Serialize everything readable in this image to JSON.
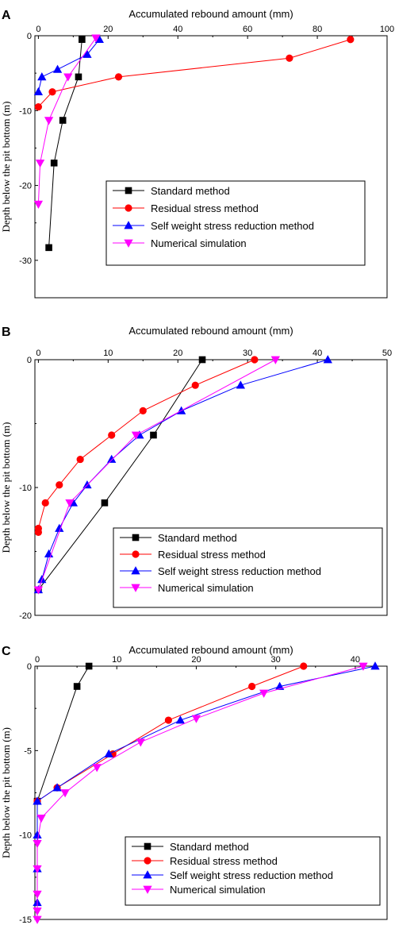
{
  "colors": {
    "standard": "#000000",
    "residual": "#ff0000",
    "selfweight": "#0000ff",
    "numerical": "#ff00ff",
    "axis": "#000000"
  },
  "chart_data": [
    {
      "type": "line",
      "panel": "A",
      "title": "",
      "xlabel": "Accumulated rebound amount (mm)",
      "ylabel": "Depth below the pit bottom (m)",
      "xlim": [
        -1,
        100
      ],
      "ylim": [
        -35,
        0
      ],
      "x_axis_position": "top",
      "x_ticks": [
        0,
        20,
        40,
        60,
        80,
        100
      ],
      "y_ticks": [
        0,
        -10,
        -20,
        -30
      ],
      "y_tick_labels": [
        "0",
        "-10",
        "-20",
        "-30"
      ],
      "grid": false,
      "legend_position": "lower-right",
      "series": [
        {
          "name": "Standard method",
          "key": "standard",
          "marker": "square",
          "x": [
            12.5,
            11.5,
            7,
            4.5,
            3
          ],
          "y": [
            -0.5,
            -5.5,
            -11.3,
            -17,
            -28.3
          ]
        },
        {
          "name": "Residual stress method",
          "key": "residual",
          "marker": "circle",
          "x": [
            89.5,
            72,
            23,
            4,
            0
          ],
          "y": [
            -0.5,
            -3,
            -5.5,
            -7.5,
            -9.5
          ]
        },
        {
          "name": "Self weight stress reduction method",
          "key": "selfweight",
          "marker": "triangle-up",
          "x": [
            17.5,
            14,
            5.5,
            1,
            0
          ],
          "y": [
            -0.5,
            -2.5,
            -4.5,
            -5.5,
            -7.5
          ]
        },
        {
          "name": "Numerical simulation",
          "key": "numerical",
          "marker": "triangle-down",
          "x": [
            16.5,
            8.5,
            3,
            0.5,
            0
          ],
          "y": [
            -0.3,
            -5.5,
            -11.3,
            -17,
            -22.5
          ]
        }
      ]
    },
    {
      "type": "line",
      "panel": "B",
      "title": "",
      "xlabel": "Accumulated rebound amount (mm)",
      "ylabel": "Depth below the pit bottom (m)",
      "xlim": [
        -0.5,
        50
      ],
      "ylim": [
        -20,
        0
      ],
      "x_axis_position": "top",
      "x_ticks": [
        0,
        10,
        20,
        30,
        40,
        50
      ],
      "y_ticks": [
        0,
        -10,
        -20
      ],
      "y_tick_labels": [
        "0",
        "-10",
        "-20"
      ],
      "grid": false,
      "legend_position": "lower-right",
      "series": [
        {
          "name": "Standard method",
          "key": "standard",
          "marker": "square",
          "x": [
            23.5,
            16.5,
            9.5,
            0
          ],
          "y": [
            0,
            -5.9,
            -11.2,
            -18
          ]
        },
        {
          "name": "Residual stress method",
          "key": "residual",
          "marker": "circle",
          "x": [
            31,
            22.5,
            15,
            10.5,
            6,
            3,
            1,
            0,
            0
          ],
          "y": [
            0,
            -2,
            -4,
            -5.9,
            -7.8,
            -9.8,
            -11.2,
            -13.2,
            -13.5
          ]
        },
        {
          "name": "Self weight stress reduction method",
          "key": "selfweight",
          "marker": "triangle-up",
          "x": [
            41.5,
            29,
            20.5,
            14.5,
            10.5,
            7,
            5,
            3,
            1.5,
            0.5,
            0
          ],
          "y": [
            0,
            -2,
            -4,
            -5.9,
            -7.8,
            -9.8,
            -11.2,
            -13.2,
            -15.2,
            -17.2,
            -18
          ]
        },
        {
          "name": "Numerical simulation",
          "key": "numerical",
          "marker": "triangle-down",
          "x": [
            34,
            14,
            4.5,
            0
          ],
          "y": [
            0,
            -5.9,
            -11.2,
            -18
          ]
        }
      ]
    },
    {
      "type": "line",
      "panel": "C",
      "title": "",
      "xlabel": "Accumulated rebound amount (mm)",
      "ylabel": "Depth below the pit bottom (m)",
      "xlim": [
        -0.3,
        44
      ],
      "ylim": [
        -15,
        0
      ],
      "x_axis_position": "top",
      "x_ticks": [
        0,
        10,
        20,
        30,
        40
      ],
      "y_ticks": [
        0,
        -5,
        -10,
        -15
      ],
      "y_tick_labels": [
        "0",
        "-5",
        "-10",
        "-15"
      ],
      "grid": false,
      "legend_position": "lower-right",
      "series": [
        {
          "name": "Standard method",
          "key": "standard",
          "marker": "square",
          "x": [
            6.5,
            5,
            0
          ],
          "y": [
            0,
            -1.2,
            -8
          ]
        },
        {
          "name": "Residual stress method",
          "key": "residual",
          "marker": "circle",
          "x": [
            33.5,
            27,
            16.5,
            9.5,
            2.5,
            0
          ],
          "y": [
            0,
            -1.2,
            -3.2,
            -5.2,
            -7.2,
            -8
          ]
        },
        {
          "name": "Self weight stress reduction method",
          "key": "selfweight",
          "marker": "triangle-up",
          "x": [
            42.5,
            30.5,
            18,
            9,
            2.5,
            0,
            0,
            0,
            0
          ],
          "y": [
            0,
            -1.2,
            -3.2,
            -5.2,
            -7.2,
            -8,
            -10,
            -12,
            -14
          ]
        },
        {
          "name": "Numerical simulation",
          "key": "numerical",
          "marker": "triangle-down",
          "x": [
            41,
            28.5,
            20,
            13,
            7.5,
            3.5,
            0.5,
            0,
            0,
            0,
            0,
            0
          ],
          "y": [
            0,
            -1.6,
            -3.1,
            -4.5,
            -6,
            -7.5,
            -9,
            -10.5,
            -12,
            -13.5,
            -14.5,
            -15
          ]
        }
      ]
    }
  ]
}
